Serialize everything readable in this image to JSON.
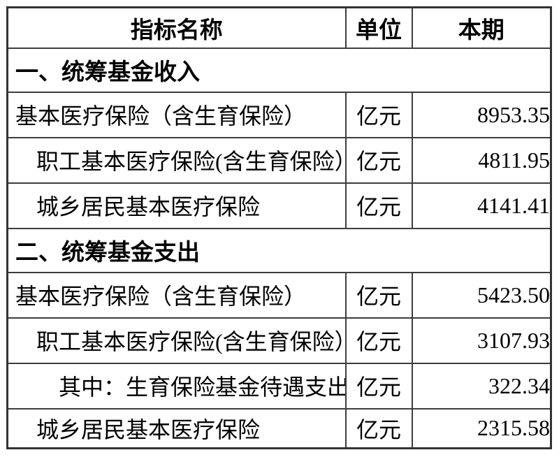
{
  "table": {
    "columns": [
      "指标名称",
      "单位",
      "本期"
    ],
    "sections": [
      {
        "title": "一、统筹基金收入",
        "rows": [
          {
            "name": "基本医疗保险（含生育保险）",
            "unit": "亿元",
            "value": "8953.35",
            "indent": "0"
          },
          {
            "name": "职工基本医疗保险(含生育保险）",
            "unit": "亿元",
            "value": "4811.95",
            "indent": "1"
          },
          {
            "name": "城乡居民基本医疗保险",
            "unit": "亿元",
            "value": "4141.41",
            "indent": "1"
          }
        ]
      },
      {
        "title": "二、统筹基金支出",
        "rows": [
          {
            "name": "基本医疗保险（含生育保险）",
            "unit": "亿元",
            "value": "5423.50",
            "indent": "0"
          },
          {
            "name": "职工基本医疗保险(含生育保险）",
            "unit": "亿元",
            "value": "3107.93",
            "indent": "1"
          },
          {
            "name": "其中：生育保险基金待遇支出",
            "unit": "亿元",
            "value": "322.34",
            "indent": "2"
          },
          {
            "name": "城乡居民基本医疗保险",
            "unit": "亿元",
            "value": "2315.58",
            "indent": "1"
          }
        ]
      }
    ]
  },
  "colors": {
    "background": "#ffffff",
    "border": "#3d3d3d",
    "text": "#000000"
  }
}
